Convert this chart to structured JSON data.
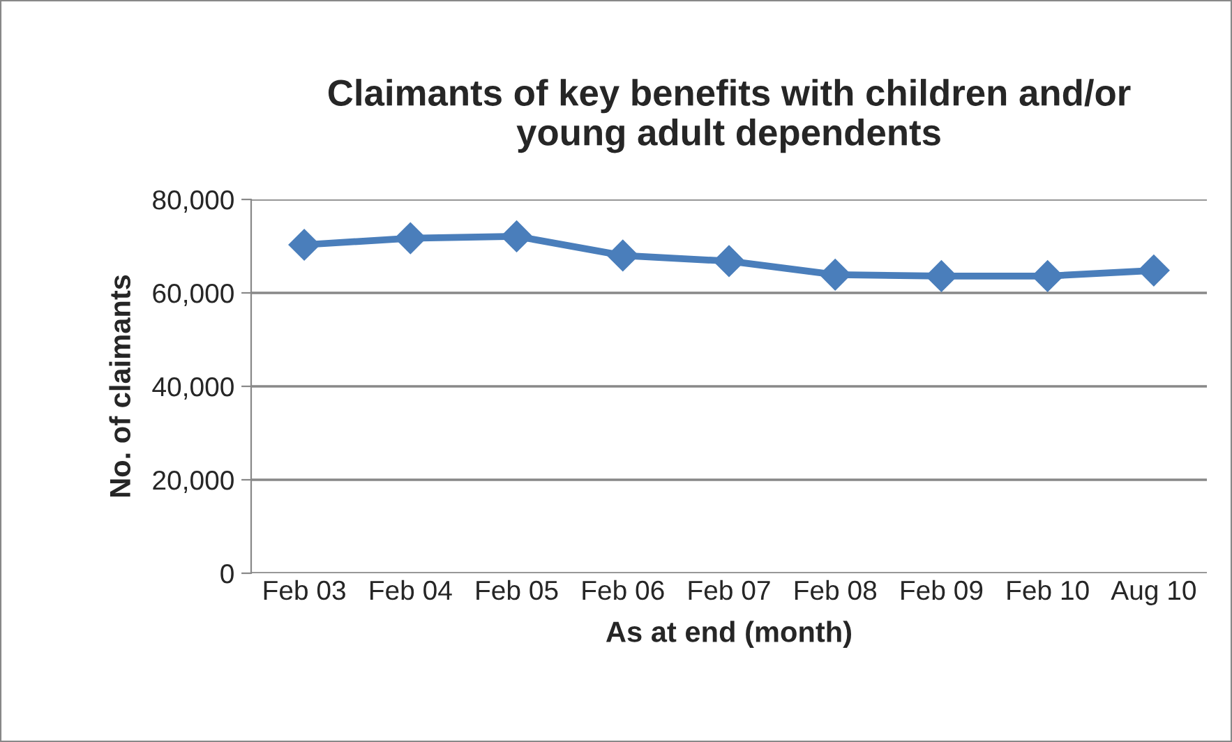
{
  "chart_data": {
    "type": "line",
    "title": "Claimants of key benefits with children and/or\nyoung adult dependents",
    "xlabel": "As at end (month)",
    "ylabel": "No. of claimants",
    "categories": [
      "Feb 03",
      "Feb 04",
      "Feb 05",
      "Feb 06",
      "Feb 07",
      "Feb 08",
      "Feb 09",
      "Feb 10",
      "Aug 10"
    ],
    "series": [
      {
        "color": "#4a7ebb",
        "values": [
          70300,
          71700,
          72100,
          68000,
          66800,
          63900,
          63600,
          63600,
          64800
        ]
      }
    ],
    "ylim": [
      0,
      80000
    ],
    "yticks": [
      {
        "value": 0,
        "label": "0"
      },
      {
        "value": 20000,
        "label": "20,000"
      },
      {
        "value": 40000,
        "label": "40,000"
      },
      {
        "value": 60000,
        "label": "60,000"
      },
      {
        "value": 80000,
        "label": "80,000"
      }
    ],
    "grid": "y",
    "legend": false,
    "marker": "diamond",
    "line_style": "solid"
  }
}
